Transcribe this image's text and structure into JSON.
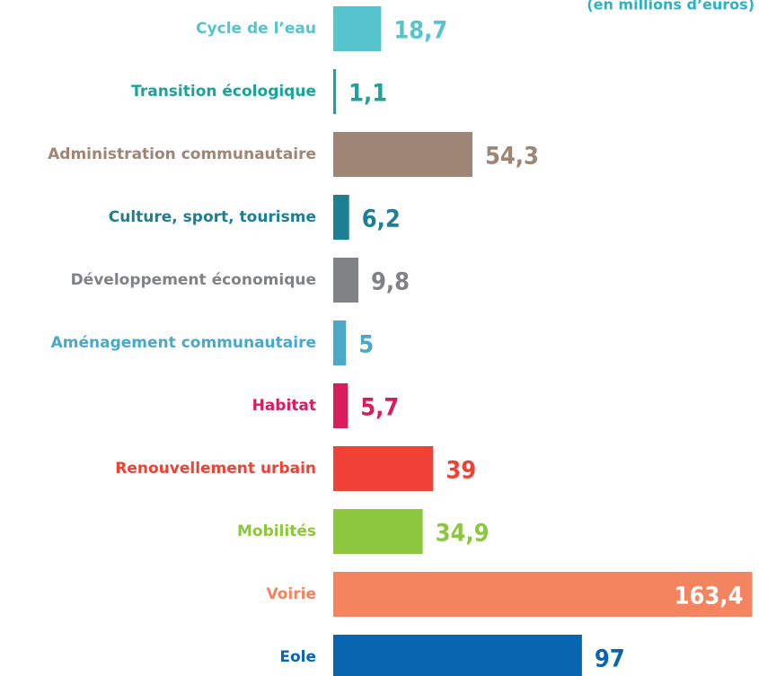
{
  "chart_data": {
    "type": "barh",
    "subtitle": "(en millions d’euros)",
    "categories": [
      "Cycle de l’eau",
      "Transition écologique",
      "Administration communautaire",
      "Culture, sport, tourisme",
      "Développement économique",
      "Aménagement communautaire",
      "Habitat",
      "Renouvellement urbain",
      "Mobilités",
      "Voirie",
      "Eole"
    ],
    "values": [
      18.7,
      1.1,
      54.3,
      6.2,
      9.8,
      5,
      5.7,
      39,
      34.9,
      163.4,
      97
    ],
    "value_labels": [
      "18,7",
      "1,1",
      "54,3",
      "6,2",
      "9,8",
      "5",
      "5,7",
      "39",
      "34,9",
      "163,4",
      "97"
    ],
    "colors": [
      "#56c4cf",
      "#1aa39a",
      "#9e8576",
      "#1d7f92",
      "#808285",
      "#4aa8c8",
      "#d91c5c",
      "#ef4136",
      "#8dc63f",
      "#f4845f",
      "#0865b0"
    ],
    "xlim": [
      0,
      165
    ]
  }
}
